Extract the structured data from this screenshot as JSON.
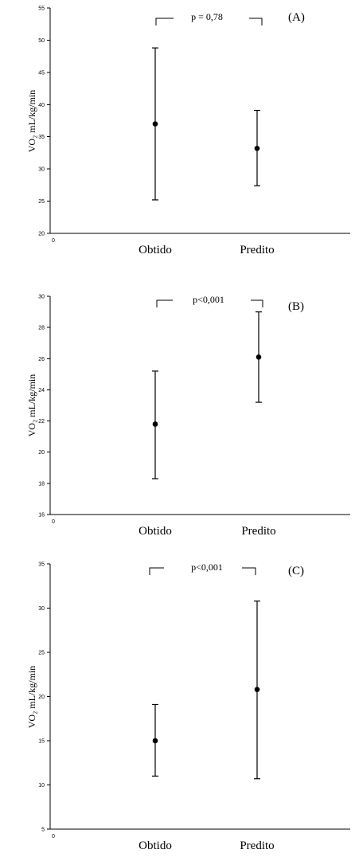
{
  "chart_data": [
    {
      "type": "scatter",
      "panel_label": "(A)",
      "ylabel": "VO₂ mL/kg/min",
      "categories": [
        "Obtido",
        "Predito"
      ],
      "means": [
        37.0,
        33.2
      ],
      "lower": [
        25.2,
        27.4
      ],
      "upper": [
        48.8,
        39.1
      ],
      "ylim": [
        20,
        55
      ],
      "yticks": [
        "20",
        "25",
        "30",
        "35",
        "40",
        "45",
        "50",
        "55"
      ],
      "origin_label": "0",
      "annotation": "p = 0,78"
    },
    {
      "type": "scatter",
      "panel_label": "(B)",
      "ylabel": "VO₂ mL/kg/min",
      "categories": [
        "Obtido",
        "Predito"
      ],
      "means": [
        21.8,
        26.1
      ],
      "lower": [
        18.3,
        23.2
      ],
      "upper": [
        25.2,
        29.0
      ],
      "ylim": [
        16,
        30
      ],
      "yticks": [
        "16",
        "18",
        "20",
        "22",
        "24",
        "26",
        "28",
        "30"
      ],
      "origin_label": "0",
      "annotation": "p<0,001"
    },
    {
      "type": "scatter",
      "panel_label": "(C)",
      "ylabel": "VO₂ mL/kg/min",
      "categories": [
        "Obtido",
        "Predito"
      ],
      "means": [
        15.0,
        20.8
      ],
      "lower": [
        11.0,
        10.7
      ],
      "upper": [
        19.1,
        30.8
      ],
      "ylim": [
        5,
        35
      ],
      "yticks": [
        "5",
        "10",
        "15",
        "20",
        "25",
        "30",
        "35"
      ],
      "origin_label": "0",
      "annotation": "p<0,001"
    }
  ]
}
